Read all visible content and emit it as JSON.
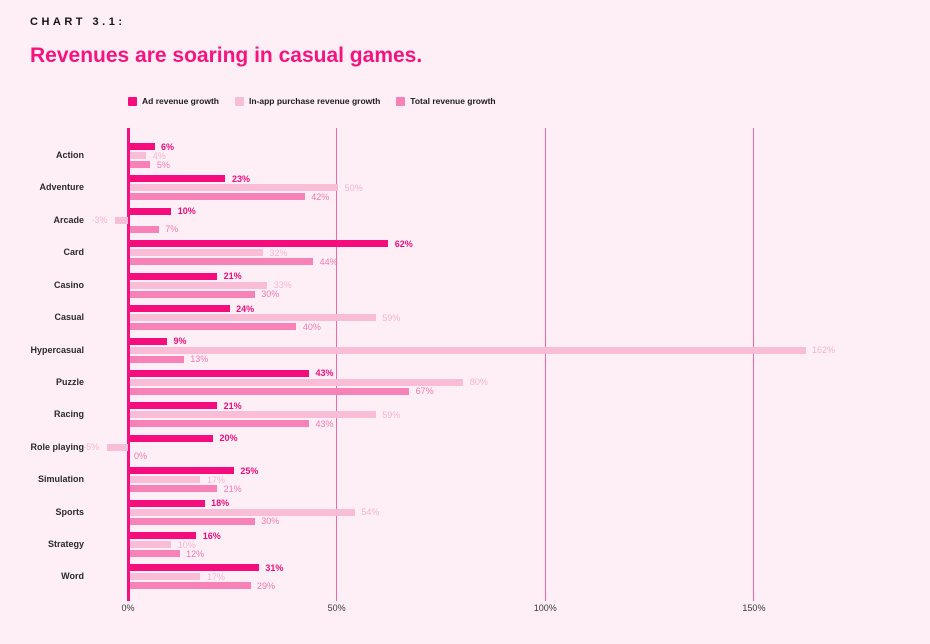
{
  "header": {
    "kicker": "CHART 3.1:",
    "title": "Revenues are soaring in casual games."
  },
  "legend": [
    {
      "label": "Ad revenue growth",
      "color": "#f50d7e"
    },
    {
      "label": "In-app purchase revenue growth",
      "color": "#f9bdd8"
    },
    {
      "label": "Total revenue growth",
      "color": "#f782b8"
    }
  ],
  "chart_data": {
    "type": "bar",
    "orientation": "horizontal",
    "title": "Revenues are soaring in casual games.",
    "xlabel": "",
    "ylabel": "",
    "value_suffix": "%",
    "xlim": [
      -10,
      175
    ],
    "x_ticks": [
      {
        "value": 0,
        "label": "0%"
      },
      {
        "value": 50,
        "label": "50%"
      },
      {
        "value": 100,
        "label": "100%"
      },
      {
        "value": 150,
        "label": "150%"
      }
    ],
    "gridlines": "vertical",
    "legend_position": "top",
    "categories": [
      "Action",
      "Adventure",
      "Arcade",
      "Card",
      "Casino",
      "Casual",
      "Hypercasual",
      "Puzzle",
      "Racing",
      "Role playing",
      "Simulation",
      "Sports",
      "Strategy",
      "Word"
    ],
    "series": [
      {
        "name": "Ad revenue growth",
        "color": "#f50d7e",
        "label_color": "#ee0e7a",
        "label_bold": true,
        "values": [
          6,
          23,
          10,
          62,
          21,
          24,
          9,
          43,
          21,
          20,
          25,
          18,
          16,
          31
        ]
      },
      {
        "name": "In-app purchase revenue growth",
        "color": "#f9bdd8",
        "label_color": "#f8b5d3",
        "label_bold": false,
        "values": [
          4,
          50,
          -3,
          32,
          33,
          59,
          162,
          80,
          59,
          -5,
          17,
          54,
          10,
          17
        ]
      },
      {
        "name": "Total revenue growth",
        "color": "#f782b8",
        "label_color": "#f578b1",
        "label_bold": false,
        "values": [
          5,
          42,
          7,
          44,
          30,
          40,
          13,
          67,
          43,
          0,
          21,
          30,
          12,
          29
        ]
      }
    ],
    "axis_color": "#f5117e",
    "gridline_color": "#ef6aa5"
  }
}
